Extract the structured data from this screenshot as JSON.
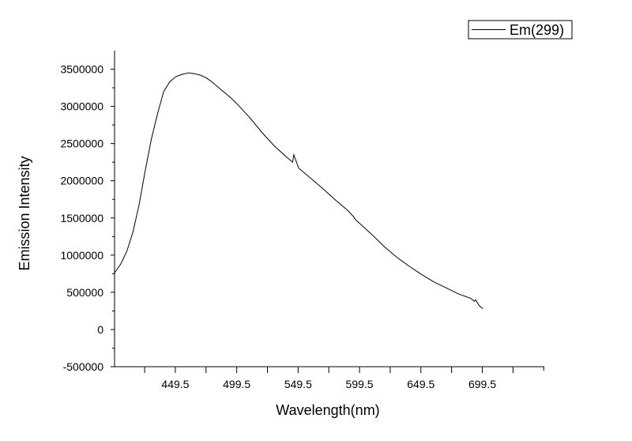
{
  "chart_data": {
    "type": "line",
    "title": "",
    "xlabel": "Wavelength(nm)",
    "ylabel": "Emission Intensity",
    "xlim": [
      400,
      750
    ],
    "ylim": [
      -500000,
      3750000
    ],
    "x_ticks": [
      449.5,
      499.5,
      549.5,
      599.5,
      649.5,
      699.5
    ],
    "x_tick_labels": [
      "449.5",
      "499.5",
      "549.5",
      "599.5",
      "649.5",
      "699.5"
    ],
    "y_ticks": [
      -500000,
      0,
      500000,
      1000000,
      1500000,
      2000000,
      2500000,
      3000000,
      3500000
    ],
    "y_tick_labels": [
      "-500000",
      "0",
      "500000",
      "1000000",
      "1500000",
      "2000000",
      "2500000",
      "3000000",
      "3500000"
    ],
    "grid": false,
    "legend_position": "top-right",
    "line_color": "#000000",
    "series": [
      {
        "name": "Em(299)",
        "x": [
          400,
          405,
          410,
          415,
          420,
          425,
          430,
          435,
          440,
          445,
          450,
          455,
          460,
          465,
          470,
          475,
          480,
          485,
          490,
          495,
          500,
          510,
          520,
          530,
          540,
          545,
          546,
          550,
          560,
          570,
          580,
          590,
          595,
          596,
          600,
          610,
          620,
          630,
          640,
          650,
          660,
          670,
          680,
          690,
          693,
          694,
          697,
          700
        ],
        "y": [
          760000,
          880000,
          1050000,
          1310000,
          1680000,
          2140000,
          2560000,
          2900000,
          3200000,
          3330000,
          3400000,
          3430000,
          3450000,
          3440000,
          3420000,
          3380000,
          3320000,
          3250000,
          3180000,
          3110000,
          3030000,
          2850000,
          2650000,
          2470000,
          2320000,
          2250000,
          2350000,
          2170000,
          2030000,
          1890000,
          1740000,
          1600000,
          1510000,
          1480000,
          1420000,
          1270000,
          1110000,
          970000,
          850000,
          740000,
          640000,
          560000,
          480000,
          420000,
          380000,
          400000,
          320000,
          280000
        ]
      }
    ]
  }
}
